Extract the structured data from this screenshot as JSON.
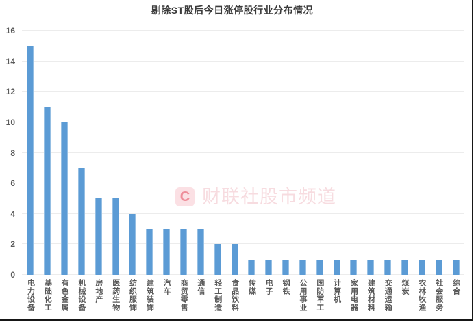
{
  "title": "剔除ST股后今日涨停股行业分布情况",
  "watermark": {
    "logo_letter": "C",
    "text": "财联社股市频道"
  },
  "colors": {
    "background": "#FFFFFF",
    "bar": "#5B9BD5",
    "grid": "#ECECEC",
    "axis_label": "#595959",
    "title": "#3B3B3B",
    "watermark_text": "#F7DCE0",
    "watermark_logo_bg": "#FBE0E4",
    "watermark_logo_letter": "#EE8E9A",
    "border": "#161616"
  },
  "y_axis": {
    "min": 0,
    "max": 16,
    "tick_interval": 2,
    "tick_labels": [
      "0",
      "2",
      "4",
      "6",
      "8",
      "10",
      "12",
      "14",
      "16"
    ]
  },
  "chart_data": {
    "type": "bar",
    "title": "剔除ST股后今日涨停股行业分布情况",
    "categories": [
      "电力设备",
      "基础化工",
      "有色金属",
      "机械设备",
      "房地产",
      "医药生物",
      "纺织服饰",
      "建筑装饰",
      "汽车",
      "商贸零售",
      "通信",
      "轻工制造",
      "食品饮料",
      "传媒",
      "电子",
      "钢铁",
      "公用事业",
      "国防军工",
      "计算机",
      "家用电器",
      "建筑材料",
      "交通运输",
      "煤炭",
      "农林牧渔",
      "社会服务",
      "综合"
    ],
    "values": [
      15,
      11,
      10,
      7,
      5,
      5,
      4,
      3,
      3,
      3,
      3,
      2,
      2,
      1,
      1,
      1,
      1,
      1,
      1,
      1,
      1,
      1,
      1,
      1,
      1,
      1
    ],
    "xlabel": "",
    "ylabel": "",
    "ylim": [
      0,
      16
    ],
    "grid": "horizontal",
    "legend": "none",
    "bar_color": "#5B9BD5"
  }
}
